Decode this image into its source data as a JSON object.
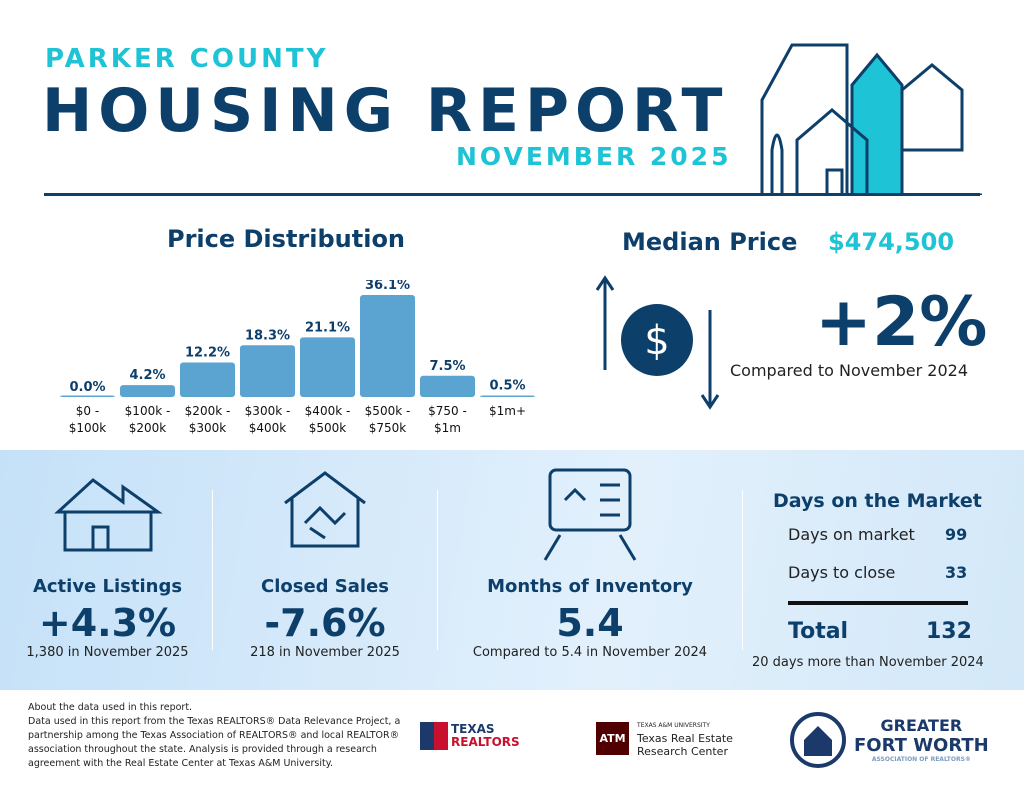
{
  "header": {
    "county": "PARKER COUNTY",
    "title": "HOUSING REPORT",
    "period": "NOVEMBER 2025"
  },
  "colors": {
    "navy": "#0d3f6b",
    "accent": "#1ec3d6",
    "bar": "#5ba3d0"
  },
  "chart_data": {
    "type": "bar",
    "title": "Price Distribution",
    "categories": [
      "$0 - $100k",
      "$100k - $200k",
      "$200k - $300k",
      "$300k - $400k",
      "$400k - $500k",
      "$500k - $750k",
      "$750 - $1m",
      "$1m+"
    ],
    "values": [
      0.0,
      4.2,
      12.2,
      18.3,
      21.1,
      36.1,
      7.5,
      0.5
    ],
    "labels": [
      "0.0%",
      "4.2%",
      "12.2%",
      "18.3%",
      "21.1%",
      "36.1%",
      "7.5%",
      "0.5%"
    ],
    "ylim": [
      0,
      36.1
    ],
    "grid": false
  },
  "median": {
    "label": "Median Price",
    "value": "$474,500",
    "change": "+2%",
    "compare": "Compared to November 2024",
    "icon": "dollar-cycle-icon"
  },
  "stats": [
    {
      "label": "Active Listings",
      "value": "+4.3%",
      "sub": "1,380 in November 2025",
      "icon": "house-icon"
    },
    {
      "label": "Closed Sales",
      "value": "-7.6%",
      "sub": "218 in November 2025",
      "icon": "handshake-house-icon"
    },
    {
      "label": "Months of Inventory",
      "value": "5.4",
      "sub": "Compared to 5.4 in November 2024",
      "icon": "tablet-icon"
    }
  ],
  "dom": {
    "title": "Days on the Market",
    "rows": [
      {
        "label": "Days on market",
        "value": "99"
      },
      {
        "label": "Days to close",
        "value": "33"
      }
    ],
    "total_label": "Total",
    "total": "132",
    "sub": "20 days more than November 2024"
  },
  "footer": {
    "text": [
      "About the data used in this report.",
      "Data used in this report from the Texas REALTORS® Data Relevance Project, a partnership among the Texas Association of REALTORS® and local REALTOR® association throughout the state. Analysis is provided through a research agreement with the Real Estate Center at Texas A&M University."
    ],
    "logos": {
      "tr": [
        "TEXAS",
        "REALTORS"
      ],
      "tamu": [
        "TEXAS A&M UNIVERSITY",
        "Texas Real Estate",
        "Research Center"
      ],
      "gfw": [
        "GREATER",
        "FORT WORTH",
        "ASSOCIATION OF REALTORS®"
      ]
    }
  }
}
